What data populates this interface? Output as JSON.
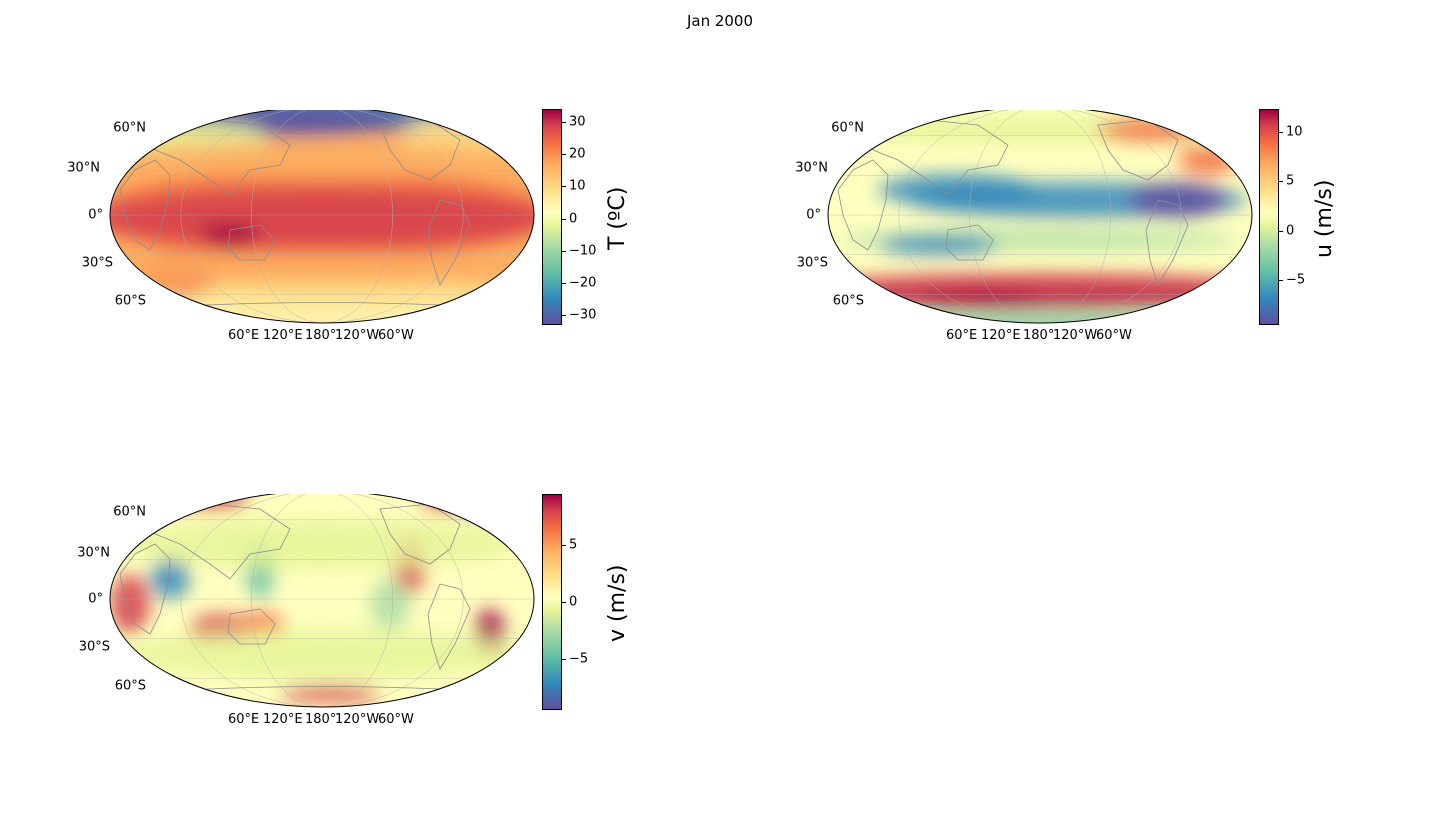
{
  "suptitle": "Jan 2000",
  "lat_labels": [
    "60°N",
    "30°N",
    "0°",
    "30°S",
    "60°S"
  ],
  "lon_labels": [
    "60°E",
    "120°E",
    "180°",
    "120°W",
    "60°W"
  ],
  "panels": [
    {
      "variable": "temperature",
      "colorbar_label": "T (ºC)",
      "colormap": "Spectral_r",
      "vmin": -33,
      "vmax": 34,
      "ticks": [
        30,
        20,
        10,
        0,
        -10,
        -20,
        -30
      ],
      "tick_labels": [
        "30",
        "20",
        "10",
        "0",
        "−10",
        "−20",
        "−30"
      ]
    },
    {
      "variable": "u-wind",
      "colorbar_label": "u (m/s)",
      "colormap": "Spectral_r",
      "vmin": -9.5,
      "vmax": 12.3,
      "ticks": [
        10,
        5,
        0,
        -5
      ],
      "tick_labels": [
        "10",
        "5",
        "0",
        "−5"
      ]
    },
    {
      "variable": "v-wind",
      "colorbar_label": "v (m/s)",
      "colormap": "Spectral_r",
      "vmin": -9.5,
      "vmax": 9.5,
      "ticks": [
        5,
        0,
        -5
      ],
      "tick_labels": [
        "5",
        "0",
        "−5"
      ]
    }
  ],
  "colors": {
    "coastline": "#8c8c8c",
    "gridline": "#b0b0b0"
  }
}
